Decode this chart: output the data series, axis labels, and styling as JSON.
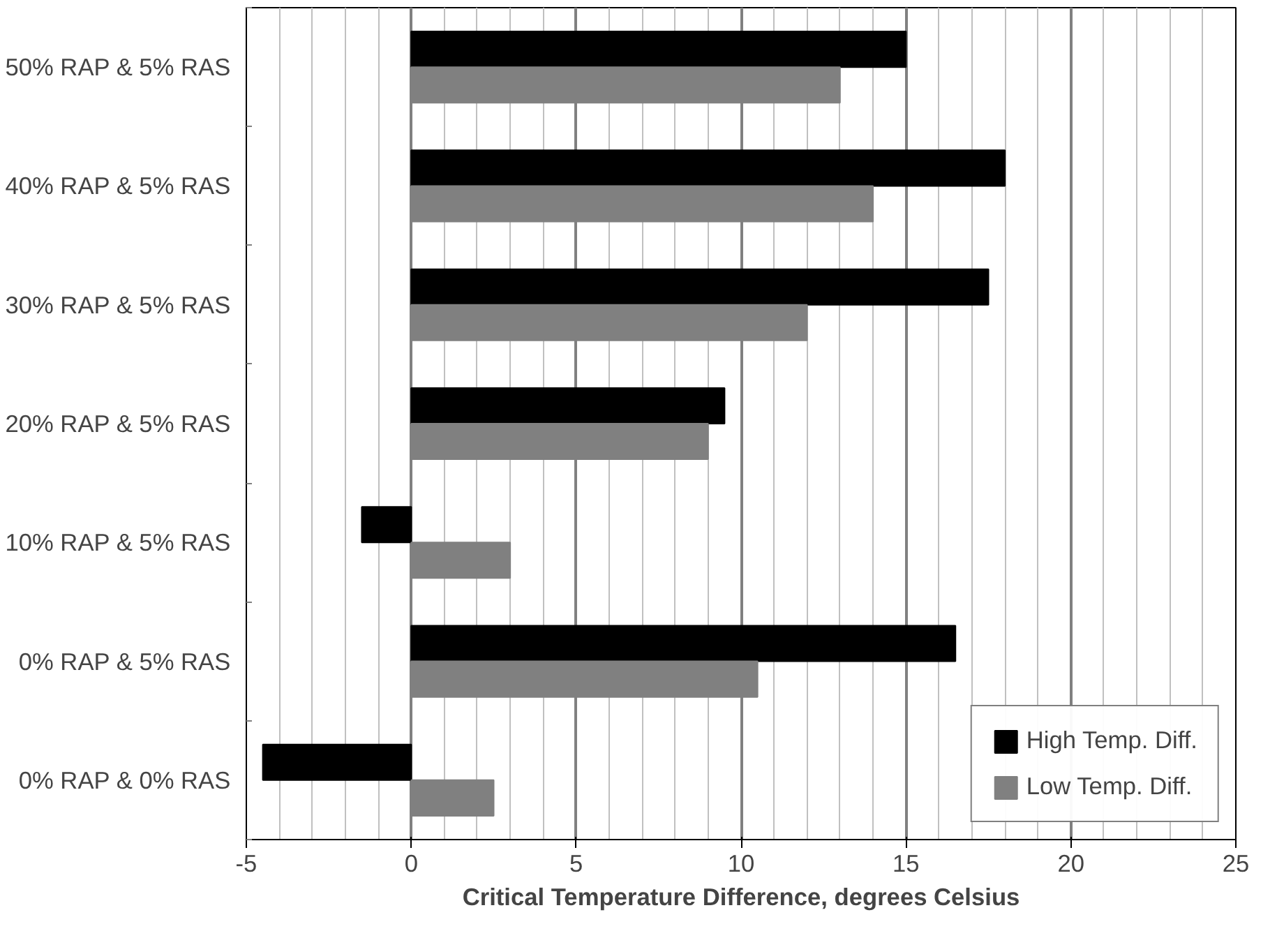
{
  "chart_data": {
    "type": "bar",
    "orientation": "horizontal",
    "xlabel": "Critical Temperature Difference, degrees Celsius",
    "categories": [
      "50% RAP & 5% RAS",
      "40% RAP & 5% RAS",
      "30% RAP & 5% RAS",
      "20% RAP & 5% RAS",
      "10% RAP & 5% RAS",
      "0% RAP & 5% RAS",
      "0% RAP & 0% RAS"
    ],
    "series": [
      {
        "name": "High Temp. Diff.",
        "color": "#000000",
        "values": [
          15,
          18,
          17.5,
          9.5,
          -1.5,
          16.5,
          -4.5
        ]
      },
      {
        "name": "Low Temp. Diff.",
        "color": "#808080",
        "values": [
          13,
          14,
          12,
          9,
          3,
          10.5,
          2.5
        ]
      }
    ],
    "xlim": [
      -5,
      25
    ],
    "xticks": [
      -5,
      0,
      5,
      10,
      15,
      20,
      25
    ],
    "grid": "x",
    "legend": "bottom right"
  }
}
